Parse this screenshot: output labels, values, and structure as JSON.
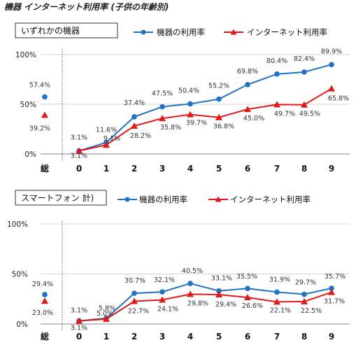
{
  "page_title": "機器 インターネット利用率 (子供の年齢別)",
  "colors": {
    "device": "#1f72c4",
    "internet": "#e01919",
    "grid": "#d4d4d4",
    "axis": "#888888",
    "divider": "#555555"
  },
  "chart_data": [
    {
      "type": "line",
      "title": "いずれかの機器",
      "categories": [
        "総",
        "0",
        "1",
        "2",
        "3",
        "4",
        "5",
        "6",
        "7",
        "8",
        "9"
      ],
      "y_ticks": [
        "100%",
        "50%",
        "0%"
      ],
      "ylim": [
        0,
        100
      ],
      "grid": true,
      "legend_position": "top",
      "series": [
        {
          "name": "機器の利用率",
          "color": "#1f72c4",
          "marker": "circle",
          "values": [
            57.4,
            3.1,
            11.6,
            37.4,
            47.5,
            50.4,
            55.2,
            69.8,
            80.4,
            82.4,
            89.9
          ],
          "labels": [
            "57.4%",
            "3.1%",
            "11.6%",
            "37.4%",
            "47.5%",
            "50.4%",
            "55.2%",
            "69.8%",
            "80.4%",
            "82.4%",
            "89.9%"
          ]
        },
        {
          "name": "インターネット利用率",
          "color": "#e01919",
          "marker": "triangle",
          "values": [
            39.2,
            3.1,
            9.1,
            28.2,
            35.8,
            39.7,
            36.8,
            45.0,
            49.7,
            49.5,
            65.8
          ],
          "labels": [
            "39.2%",
            "3.1%",
            "9.1%",
            "28.2%",
            "35.8%",
            "39.7%",
            "36.8%",
            "45.0%",
            "49.7%",
            "49.5%",
            "65.8%"
          ]
        }
      ]
    },
    {
      "type": "line",
      "title": "スマートフォン 計)",
      "categories": [
        "総",
        "0",
        "1",
        "2",
        "3",
        "4",
        "5",
        "6",
        "7",
        "8",
        "9"
      ],
      "y_ticks": [
        "100%",
        "50%",
        "0%"
      ],
      "ylim": [
        0,
        100
      ],
      "grid": true,
      "legend_position": "top",
      "series": [
        {
          "name": "機器の利用率",
          "color": "#1f72c4",
          "marker": "circle",
          "values": [
            29.4,
            3.1,
            5.8,
            30.7,
            32.1,
            40.5,
            33.1,
            35.5,
            31.9,
            29.7,
            35.7
          ],
          "labels": [
            "29.4%",
            "3.1%",
            "5.8%",
            "30.7%",
            "32.1%",
            "40.5%",
            "33.1%",
            "35.5%",
            "31.9%",
            "29.7%",
            "35.7%"
          ]
        },
        {
          "name": "インターネット利用率",
          "color": "#e01919",
          "marker": "triangle",
          "values": [
            23.0,
            3.1,
            5.0,
            22.7,
            24.1,
            29.8,
            29.4,
            26.6,
            22.1,
            22.5,
            31.7
          ],
          "labels": [
            "23.0%",
            "3.1%",
            "5.0%",
            "22.7%",
            "24.1%",
            "29.8%",
            "29.4%",
            "26.6%",
            "22.1%",
            "22.5%",
            "31.7%"
          ]
        }
      ]
    }
  ]
}
